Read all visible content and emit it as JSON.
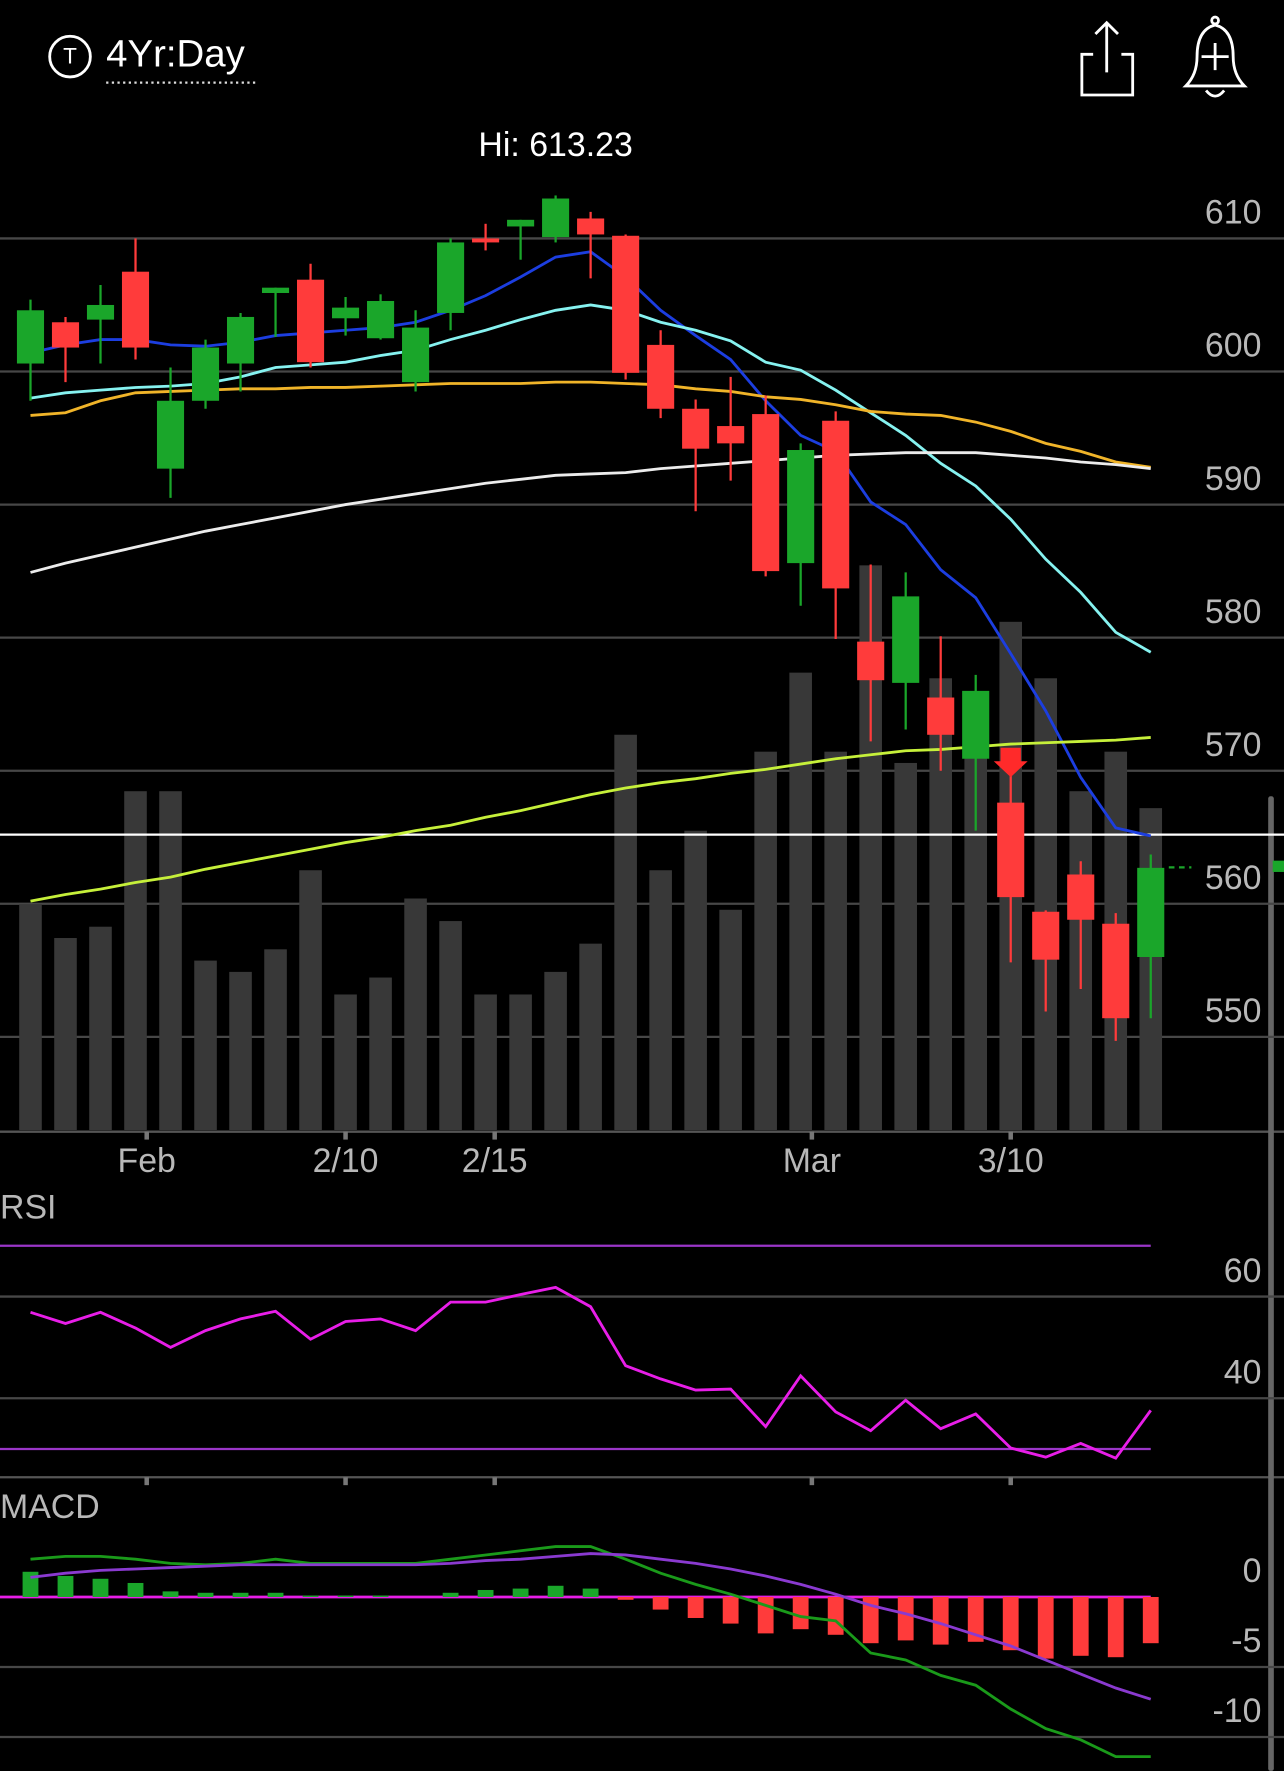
{
  "header": {
    "badge": "T",
    "range": "4Yr:Day"
  },
  "chart_data": [
    {
      "type": "candlestick",
      "annotation": "Hi: 613.23",
      "ylim": [
        543,
        615
      ],
      "yticks": [
        550,
        560,
        570,
        580,
        590,
        600,
        610
      ],
      "grid": true,
      "xticks": [
        {
          "value": 3.32,
          "label": "Feb"
        },
        {
          "value": 9,
          "label": "2/10"
        },
        {
          "value": 13.26,
          "label": "2/15"
        },
        {
          "value": 22.32,
          "label": "Mar"
        },
        {
          "value": 28,
          "label": "3/10"
        }
      ],
      "open": [
        600.6,
        603.7,
        603.9,
        607.5,
        592.7,
        597.8,
        600.6,
        605.9,
        606.9,
        604.0,
        602.5,
        599.2,
        604.4,
        610.0,
        610.9,
        610.1,
        611.5,
        610.2,
        602.0,
        597.2,
        595.9,
        596.8,
        585.6,
        596.3,
        579.7,
        576.6,
        575.5,
        570.9,
        567.6,
        559.4,
        562.2,
        558.5,
        556.0
      ],
      "high": [
        605.4,
        604.1,
        606.5,
        610.0,
        600.3,
        602.4,
        604.4,
        606.3,
        608.1,
        605.6,
        605.8,
        604.6,
        610.0,
        611.1,
        611.4,
        613.23,
        612.0,
        610.3,
        603.1,
        597.9,
        599.6,
        598.2,
        594.6,
        597.0,
        585.5,
        584.9,
        580.1,
        577.2,
        569.7,
        559.5,
        563.2,
        559.3,
        563.7
      ],
      "low": [
        597.8,
        599.2,
        600.6,
        600.9,
        590.5,
        597.2,
        598.5,
        602.6,
        600.3,
        602.7,
        602.4,
        598.5,
        603.1,
        609.1,
        608.4,
        609.7,
        607.0,
        599.4,
        596.5,
        589.5,
        591.8,
        584.6,
        582.4,
        579.9,
        572.2,
        573.1,
        570.0,
        565.5,
        555.6,
        551.9,
        553.6,
        549.7,
        551.4
      ],
      "close": [
        604.6,
        601.8,
        605.0,
        601.8,
        597.8,
        601.8,
        604.1,
        606.3,
        600.7,
        604.8,
        605.3,
        603.3,
        609.7,
        609.7,
        611.4,
        613.0,
        610.3,
        599.9,
        597.2,
        594.2,
        594.6,
        585.0,
        594.1,
        583.7,
        576.8,
        583.1,
        572.7,
        576.0,
        560.5,
        555.8,
        558.8,
        551.4,
        562.7
      ],
      "up_color": "#1aa62a",
      "down_color": "#ff3b3b",
      "volume": [
        40,
        34,
        36,
        60,
        60,
        30,
        28,
        32,
        46,
        24,
        27,
        41,
        37,
        24,
        24,
        28,
        33,
        70,
        46,
        53,
        39,
        67,
        81,
        67,
        100,
        65,
        80,
        70,
        90,
        80,
        60,
        67,
        57
      ],
      "vlim": [
        0,
        100
      ],
      "volume_color": "#383838",
      "price_line": 565.2,
      "series": [
        {
          "color": "#1c3ee0",
          "values": [
            601.4,
            602.0,
            602.4,
            602.4,
            602.0,
            601.9,
            602.2,
            602.7,
            602.9,
            603.1,
            603.3,
            603.7,
            604.6,
            605.7,
            607.1,
            608.6,
            609.0,
            607.1,
            604.6,
            602.7,
            600.9,
            597.8,
            595.2,
            594.0,
            590.2,
            588.5,
            585.1,
            583.0,
            578.8,
            574.5,
            569.5,
            565.7,
            565.1
          ]
        },
        {
          "color": "#86f2f0",
          "values": [
            598.0,
            598.4,
            598.6,
            598.8,
            598.9,
            599.1,
            599.6,
            600.3,
            600.5,
            600.7,
            601.2,
            601.6,
            602.4,
            603.1,
            603.9,
            604.6,
            605.0,
            604.6,
            603.7,
            603.1,
            602.3,
            600.7,
            600.1,
            598.6,
            596.9,
            595.2,
            593.1,
            591.4,
            588.9,
            585.9,
            583.4,
            580.4,
            578.9
          ]
        },
        {
          "color": "#f0b429",
          "values": [
            596.7,
            596.9,
            597.8,
            598.4,
            598.5,
            598.6,
            598.7,
            598.7,
            598.8,
            598.8,
            598.9,
            599.0,
            599.1,
            599.1,
            599.1,
            599.2,
            599.2,
            599.1,
            599.0,
            598.7,
            598.5,
            598.1,
            597.9,
            597.5,
            597.0,
            596.8,
            596.7,
            596.2,
            595.5,
            594.6,
            594.0,
            593.2,
            592.8
          ]
        },
        {
          "color": "#ececec",
          "values": [
            584.9,
            585.6,
            586.2,
            586.8,
            587.4,
            588.0,
            588.5,
            589.0,
            589.5,
            590.0,
            590.4,
            590.8,
            591.2,
            591.6,
            591.9,
            592.2,
            592.3,
            592.4,
            592.7,
            592.9,
            593.1,
            593.3,
            593.5,
            593.7,
            593.8,
            593.9,
            593.9,
            593.9,
            593.7,
            593.5,
            593.2,
            593.0,
            592.7
          ]
        },
        {
          "color": "#c6f03a",
          "values": [
            560.2,
            560.7,
            561.1,
            561.6,
            562.0,
            562.6,
            563.1,
            563.6,
            564.1,
            564.6,
            565.0,
            565.5,
            565.9,
            566.5,
            567.0,
            567.6,
            568.2,
            568.7,
            569.1,
            569.4,
            569.8,
            570.1,
            570.5,
            570.9,
            571.2,
            571.5,
            571.6,
            571.8,
            572.0,
            572.1,
            572.2,
            572.3,
            572.5
          ]
        }
      ]
    },
    {
      "type": "line",
      "title": "RSI",
      "ylim": [
        24,
        74
      ],
      "yticks": [
        60,
        40
      ],
      "grid": true,
      "bands": [
        70,
        30
      ],
      "band_color": "#9a36c8",
      "series": [
        {
          "color": "#e81ee8",
          "values": [
            56.9,
            54.7,
            56.9,
            53.8,
            50.0,
            53.3,
            55.6,
            57.1,
            51.6,
            55.1,
            55.6,
            53.3,
            58.9,
            58.9,
            60.4,
            61.8,
            58.0,
            46.4,
            43.8,
            41.6,
            41.8,
            34.4,
            44.4,
            37.3,
            33.6,
            39.6,
            34.0,
            36.9,
            30.2,
            28.4,
            31.1,
            28.2,
            37.6
          ]
        }
      ]
    },
    {
      "type": "macd",
      "title": "MACD",
      "ylim": [
        -12.4,
        6.8
      ],
      "yticks": [
        0,
        -5,
        -10
      ],
      "grid": true,
      "zero_color": "#e81ee8",
      "series": [
        {
          "color": "#1a9a1a",
          "values": [
            2.7,
            2.9,
            2.9,
            2.7,
            2.4,
            2.3,
            2.4,
            2.7,
            2.4,
            2.4,
            2.4,
            2.4,
            2.7,
            3.0,
            3.3,
            3.6,
            3.6,
            2.7,
            1.7,
            0.9,
            0.2,
            -0.6,
            -1.4,
            -1.7,
            -4.0,
            -4.5,
            -5.6,
            -6.3,
            -8.0,
            -9.4,
            -10.2,
            -11.4,
            -11.4
          ]
        },
        {
          "color": "#8a3ad0",
          "values": [
            1.4,
            1.7,
            1.9,
            2.0,
            2.1,
            2.2,
            2.3,
            2.3,
            2.3,
            2.3,
            2.3,
            2.3,
            2.4,
            2.6,
            2.7,
            2.9,
            3.1,
            3.0,
            2.7,
            2.4,
            2.0,
            1.5,
            0.9,
            0.2,
            -0.6,
            -1.2,
            -1.9,
            -2.7,
            -3.5,
            -4.5,
            -5.5,
            -6.5,
            -7.3
          ]
        }
      ],
      "histogram": [
        1.8,
        1.5,
        1.3,
        1.0,
        0.4,
        0.3,
        0.3,
        0.3,
        0.1,
        0.1,
        0.1,
        0.0,
        0.3,
        0.5,
        0.6,
        0.8,
        0.6,
        -0.2,
        -0.9,
        -1.5,
        -1.9,
        -2.6,
        -2.3,
        -2.7,
        -3.3,
        -3.1,
        -3.4,
        -3.2,
        -3.8,
        -4.4,
        -4.2,
        -4.3,
        -3.3
      ],
      "up_color": "#1aa62a",
      "down_color": "#ff3b3b"
    }
  ]
}
